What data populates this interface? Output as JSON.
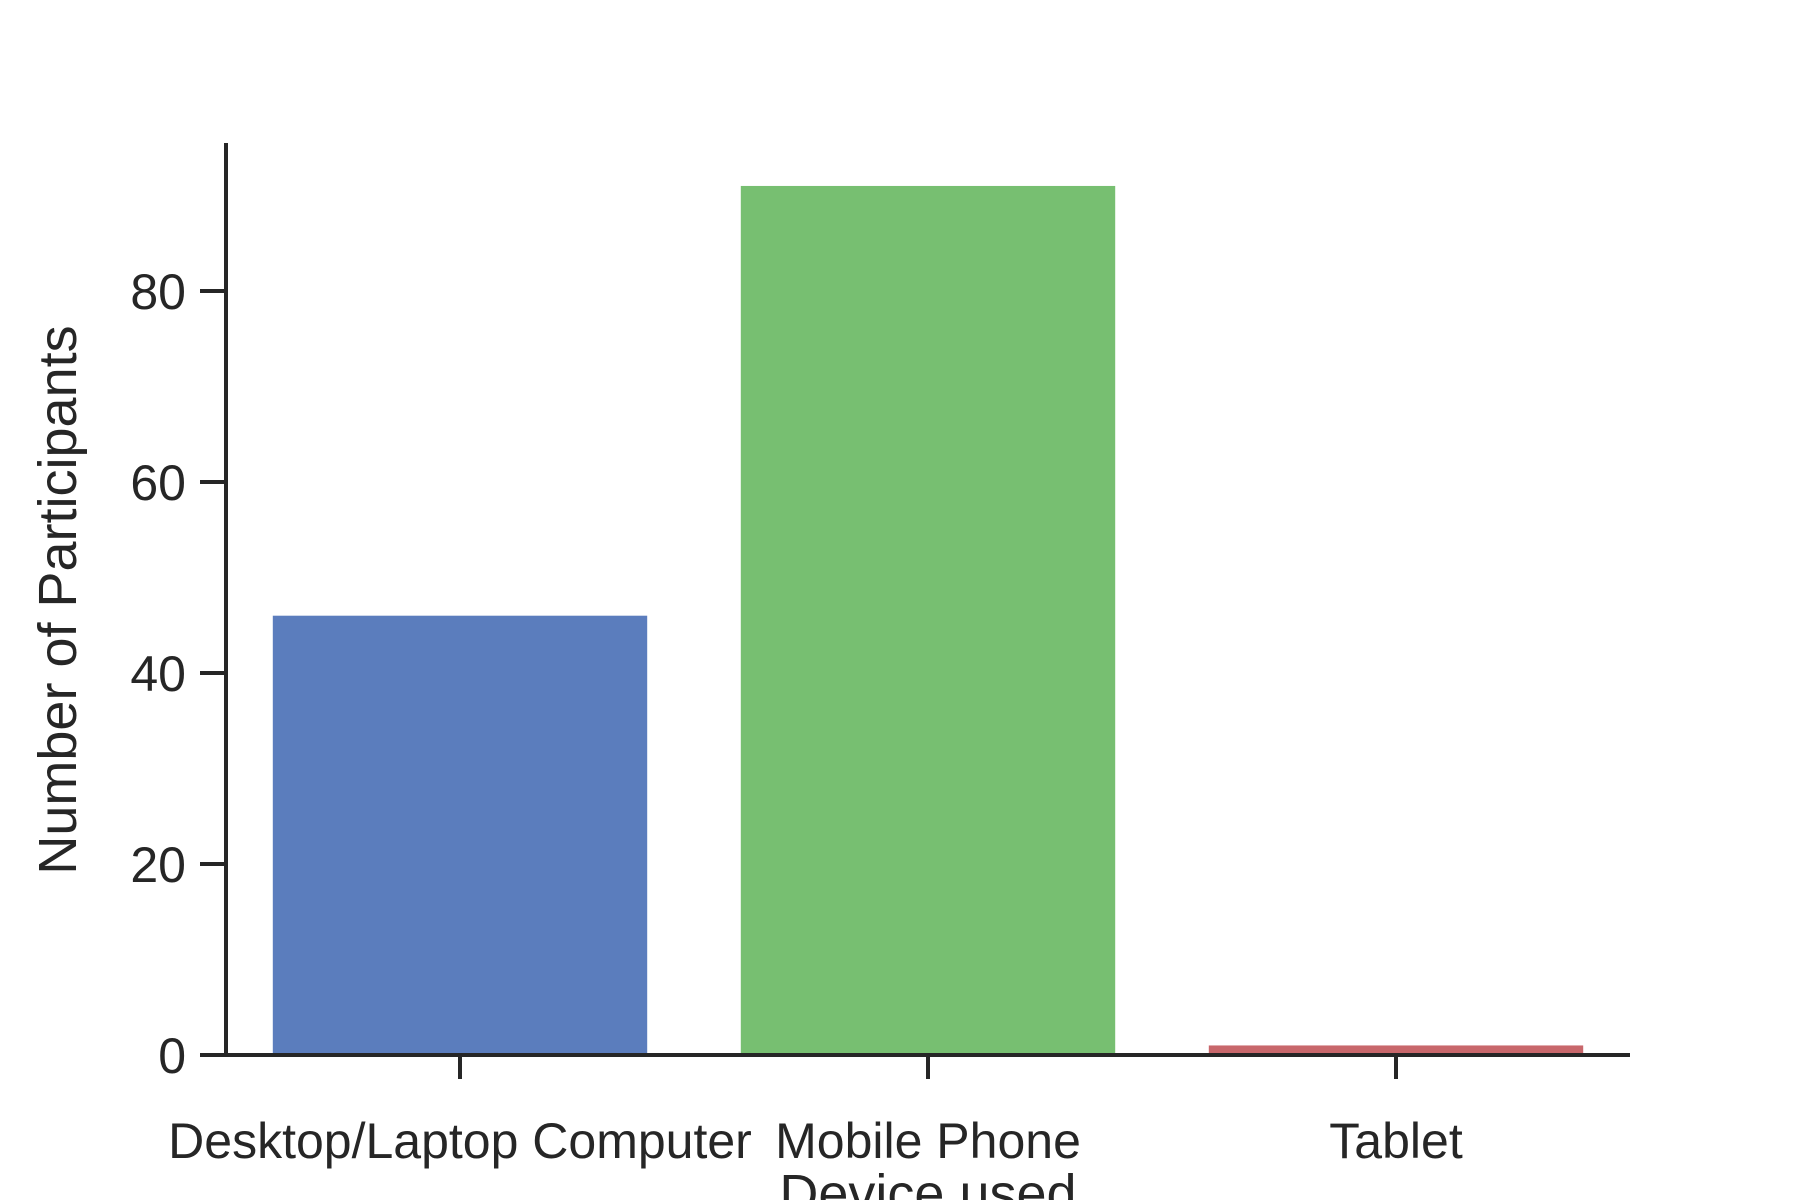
{
  "chart_data": {
    "type": "bar",
    "categories": [
      "Desktop/Laptop Computer",
      "Mobile Phone",
      "Tablet"
    ],
    "values": [
      46,
      91,
      1
    ],
    "colors": [
      "#5b7dbd",
      "#77bf71",
      "#c8676b"
    ],
    "title": "",
    "xlabel": "Device used",
    "ylabel": "Number of Participants",
    "ylim": [
      0,
      95.5
    ],
    "yticks": [
      "0",
      "20",
      "40",
      "60",
      "80"
    ],
    "grid": false,
    "axis_color": "#262626"
  }
}
